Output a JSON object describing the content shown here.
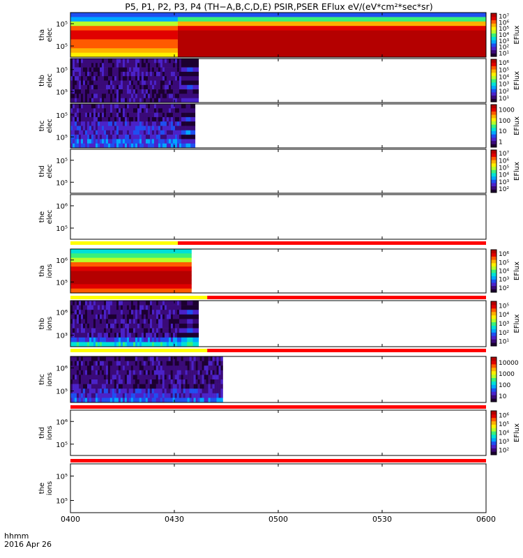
{
  "chart_data": {
    "type": "heatmap",
    "title": "P5, P1, P2, P3, P4 (TH−A,B,C,D,E) PSIR,PSER EFlux eV/(eV*cm²*sec*sr)",
    "time_axis": {
      "label_line1": "hhmm",
      "label_line2": "2016 Apr 26",
      "ticks": [
        "0400",
        "0430",
        "0500",
        "0530",
        "0600"
      ],
      "range_minutes": [
        0,
        120
      ]
    },
    "palette": [
      "#1c0030",
      "#3a0a78",
      "#4b22c8",
      "#1f4ff0",
      "#00a8ff",
      "#00e0d8",
      "#3af07a",
      "#b6ff2a",
      "#fff000",
      "#ffb000",
      "#ff5a00",
      "#e00000",
      "#b40000"
    ],
    "panels": [
      {
        "key": "tha_elec",
        "ylabel": [
          "tha",
          "elec"
        ],
        "yticks": [
          "10⁵",
          "10⁵"
        ],
        "cbar_label": "EFlux",
        "cbar_ticks": [
          "10⁷",
          "10⁶",
          "10⁵",
          "10⁴",
          "10³",
          "10²",
          "10¹"
        ],
        "segments": [
          {
            "t0": 0,
            "t1": 31,
            "style": "smooth",
            "levels": [
              3,
              4,
              7,
              10,
              11,
              11,
              10,
              10,
              9,
              8
            ]
          },
          {
            "t0": 31,
            "t1": 120,
            "style": "smooth",
            "levels": [
              3,
              6,
              9,
              11,
              12,
              12,
              12,
              12,
              12,
              12
            ]
          }
        ]
      },
      {
        "key": "thb_elec",
        "ylabel": [
          "thb",
          "elec"
        ],
        "yticks": [
          "10⁵",
          "10⁵"
        ],
        "cbar_label": "EFlux",
        "cbar_ticks": [
          "10⁶",
          "10⁵",
          "10⁴",
          "10³",
          "10²",
          "10¹"
        ],
        "segments": [
          {
            "t0": 0,
            "t1": 32,
            "style": "noise",
            "levels": [
              1,
              1,
              1,
              1,
              1,
              1,
              1,
              1,
              1,
              1
            ]
          },
          {
            "t0": 32,
            "t1": 37,
            "style": "blocks",
            "levels": [
              0,
              0,
              2,
              0,
              1,
              0,
              2,
              0,
              1,
              2
            ]
          }
        ]
      },
      {
        "key": "thc_elec",
        "ylabel": [
          "thc",
          "elec"
        ],
        "yticks": [
          "10⁵",
          "10⁵"
        ],
        "cbar_label": "EFlux",
        "cbar_ticks": [
          "1000",
          "100",
          "10",
          "1"
        ],
        "segments": [
          {
            "t0": 0,
            "t1": 32,
            "style": "noise",
            "levels": [
              1,
              1,
              1,
              1,
              2,
              2,
              2,
              2,
              3,
              3
            ]
          },
          {
            "t0": 32,
            "t1": 36,
            "style": "blocks",
            "levels": [
              0,
              1,
              0,
              2,
              0,
              1,
              3,
              0,
              2,
              3
            ]
          }
        ]
      },
      {
        "key": "thd_elec",
        "ylabel": [
          "thd",
          "elec"
        ],
        "yticks": [
          "10⁵",
          "10⁵"
        ],
        "cbar_label": "EFlux",
        "cbar_ticks": [
          "10⁷",
          "10⁶",
          "10⁵",
          "10⁴",
          "10³",
          "10²"
        ],
        "segments": []
      },
      {
        "key": "the_elec",
        "ylabel": [
          "the",
          "elec"
        ],
        "yticks": [
          "10⁶",
          "10⁵"
        ],
        "segments": []
      },
      {
        "key": "tha_ions",
        "ylabel": [
          "tha",
          "ions"
        ],
        "yticks": [
          "10⁶",
          "10⁵"
        ],
        "cbar_label": "EFlux",
        "cbar_ticks": [
          "10⁶",
          "10⁵",
          "10⁴",
          "10³",
          "10²"
        ],
        "segments": [
          {
            "t0": 0,
            "t1": 35,
            "style": "smooth",
            "levels": [
              5,
              6,
              7,
              10,
              11,
              12,
              12,
              12,
              11,
              10
            ]
          }
        ]
      },
      {
        "key": "thb_ions",
        "ylabel": [
          "thb",
          "ions"
        ],
        "yticks": [
          "10⁶",
          "10³"
        ],
        "cbar_label": "EFlux",
        "cbar_ticks": [
          "10⁵",
          "10⁴",
          "10³",
          "10²",
          "10¹"
        ],
        "segments": [
          {
            "t0": 0,
            "t1": 32,
            "style": "noise",
            "levels": [
              1,
              1,
              1,
              1,
              1,
              1,
              1,
              1,
              3,
              5
            ]
          },
          {
            "t0": 32,
            "t1": 37,
            "style": "blocks",
            "levels": [
              0,
              0,
              2,
              0,
              1,
              0,
              2,
              0,
              4,
              5
            ]
          }
        ]
      },
      {
        "key": "thc_ions",
        "ylabel": [
          "thc",
          "ions"
        ],
        "yticks": [
          "10⁶",
          "10⁵"
        ],
        "cbar_ticks": [
          "10000",
          "1000",
          "100",
          "10"
        ],
        "segments": [
          {
            "t0": 0,
            "t1": 44,
            "style": "noise",
            "levels": [
              1,
              1,
              1,
              1,
              1,
              1,
              1,
              2,
              2,
              3
            ]
          }
        ]
      },
      {
        "key": "thd_ions",
        "ylabel": [
          "thd",
          "ions"
        ],
        "yticks": [
          "10⁶",
          "10⁵"
        ],
        "cbar_label": "EFlux",
        "cbar_ticks": [
          "10⁶",
          "10⁵",
          "10⁴",
          "10³",
          "10²"
        ],
        "segments": []
      },
      {
        "key": "the_ions",
        "ylabel": [
          "the",
          "ions"
        ],
        "yticks": [
          "10⁵",
          "10⁵"
        ],
        "segments": []
      }
    ],
    "mode_bars": [
      {
        "after_panel": 4,
        "segments": [
          {
            "t0": 0,
            "t1": 31,
            "color": "#ffff00"
          },
          {
            "t0": 31,
            "t1": 120,
            "color": "#ff0000"
          }
        ]
      },
      {
        "after_panel": 5,
        "segments": [
          {
            "t0": 0,
            "t1": 39.5,
            "color": "#ffff00"
          },
          {
            "t0": 39.5,
            "t1": 120,
            "color": "#ff0000"
          }
        ]
      },
      {
        "after_panel": 6,
        "segments": [
          {
            "t0": 0,
            "t1": 39.5,
            "color": "#ffff00"
          },
          {
            "t0": 39.5,
            "t1": 120,
            "color": "#ff0000"
          }
        ]
      },
      {
        "after_panel": 7,
        "segments": [
          {
            "t0": 0,
            "t1": 120,
            "color": "#ff0000"
          }
        ]
      },
      {
        "after_panel": 8,
        "segments": [
          {
            "t0": 0,
            "t1": 120,
            "color": "#ff0000"
          }
        ]
      }
    ]
  }
}
